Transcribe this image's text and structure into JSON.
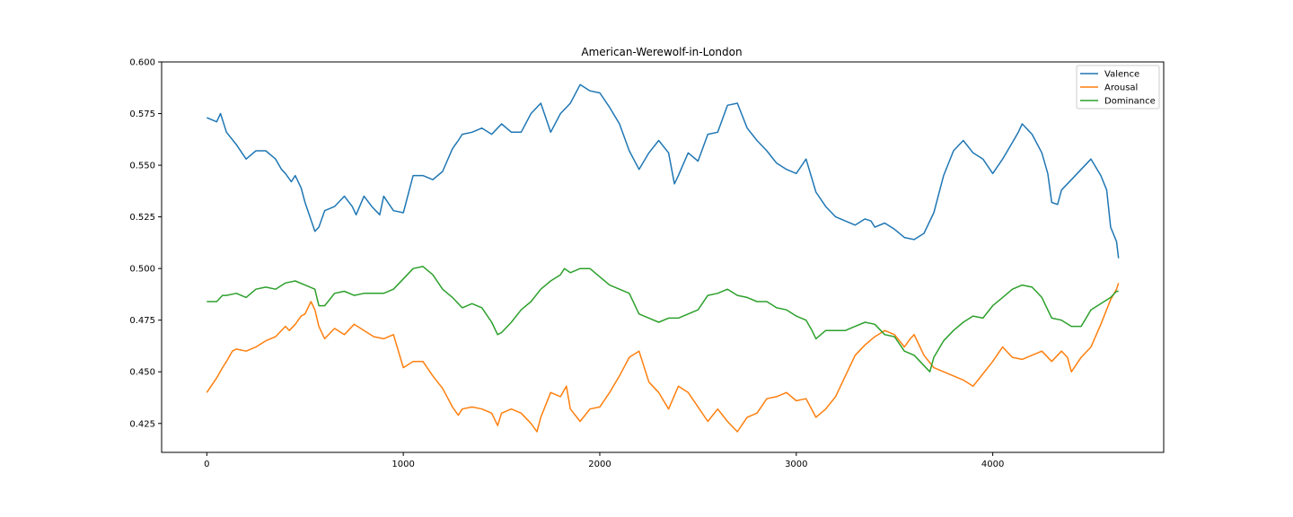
{
  "chart_data": {
    "type": "line",
    "title": "American-Werewolf-in-London",
    "xlabel": "",
    "ylabel": "",
    "xlim": [
      -230,
      4870
    ],
    "ylim": [
      0.411,
      0.6
    ],
    "xticks": [
      0,
      1000,
      2000,
      3000,
      4000
    ],
    "xtick_labels": [
      "0",
      "1000",
      "2000",
      "3000",
      "4000"
    ],
    "yticks": [
      0.425,
      0.45,
      0.475,
      0.5,
      0.525,
      0.55,
      0.575,
      0.6
    ],
    "ytick_labels": [
      "0.425",
      "0.450",
      "0.475",
      "0.500",
      "0.525",
      "0.550",
      "0.575",
      "0.600"
    ],
    "grid": false,
    "legend_position": "top-right",
    "series": [
      {
        "name": "Valence",
        "color": "#1f77b4",
        "x": [
          0,
          50,
          70,
          100,
          150,
          200,
          250,
          300,
          350,
          380,
          400,
          430,
          450,
          480,
          500,
          550,
          570,
          600,
          650,
          700,
          740,
          760,
          800,
          840,
          880,
          900,
          950,
          1000,
          1050,
          1100,
          1150,
          1200,
          1250,
          1280,
          1300,
          1350,
          1400,
          1450,
          1480,
          1500,
          1550,
          1600,
          1650,
          1700,
          1750,
          1800,
          1830,
          1850,
          1900,
          1950,
          2000,
          2050,
          2100,
          2150,
          2200,
          2250,
          2300,
          2350,
          2380,
          2400,
          2450,
          2500,
          2550,
          2600,
          2650,
          2700,
          2750,
          2800,
          2850,
          2900,
          2950,
          3000,
          3050,
          3100,
          3150,
          3200,
          3250,
          3300,
          3350,
          3380,
          3400,
          3450,
          3500,
          3550,
          3600,
          3650,
          3700,
          3750,
          3800,
          3850,
          3900,
          3950,
          4000,
          4050,
          4100,
          4130,
          4150,
          4200,
          4250,
          4280,
          4300,
          4330,
          4350,
          4400,
          4450,
          4500,
          4550,
          4580,
          4600,
          4630,
          4640
        ],
        "values": [
          0.573,
          0.571,
          0.575,
          0.566,
          0.56,
          0.553,
          0.557,
          0.557,
          0.553,
          0.548,
          0.546,
          0.542,
          0.545,
          0.539,
          0.532,
          0.518,
          0.52,
          0.528,
          0.53,
          0.535,
          0.53,
          0.526,
          0.535,
          0.53,
          0.526,
          0.535,
          0.528,
          0.527,
          0.545,
          0.545,
          0.543,
          0.547,
          0.558,
          0.562,
          0.565,
          0.566,
          0.568,
          0.565,
          0.568,
          0.57,
          0.566,
          0.566,
          0.575,
          0.58,
          0.566,
          0.575,
          0.578,
          0.58,
          0.589,
          0.586,
          0.585,
          0.578,
          0.57,
          0.557,
          0.548,
          0.556,
          0.562,
          0.556,
          0.541,
          0.545,
          0.556,
          0.552,
          0.565,
          0.566,
          0.579,
          0.58,
          0.568,
          0.562,
          0.557,
          0.551,
          0.548,
          0.546,
          0.553,
          0.537,
          0.53,
          0.525,
          0.523,
          0.521,
          0.524,
          0.523,
          0.52,
          0.522,
          0.519,
          0.515,
          0.514,
          0.517,
          0.527,
          0.545,
          0.557,
          0.562,
          0.556,
          0.553,
          0.546,
          0.553,
          0.561,
          0.566,
          0.57,
          0.565,
          0.556,
          0.546,
          0.532,
          0.531,
          0.538,
          0.543,
          0.548,
          0.553,
          0.545,
          0.538,
          0.52,
          0.513,
          0.505
        ]
      },
      {
        "name": "Arousal",
        "color": "#ff7f0e",
        "x": [
          0,
          50,
          80,
          100,
          130,
          150,
          200,
          250,
          300,
          350,
          400,
          420,
          450,
          480,
          500,
          530,
          550,
          570,
          600,
          650,
          700,
          720,
          750,
          800,
          850,
          900,
          950,
          1000,
          1050,
          1100,
          1150,
          1200,
          1250,
          1280,
          1300,
          1350,
          1400,
          1450,
          1480,
          1500,
          1550,
          1600,
          1650,
          1680,
          1700,
          1750,
          1800,
          1830,
          1850,
          1900,
          1950,
          2000,
          2050,
          2100,
          2150,
          2200,
          2250,
          2300,
          2350,
          2400,
          2450,
          2500,
          2550,
          2600,
          2650,
          2700,
          2750,
          2800,
          2850,
          2900,
          2950,
          3000,
          3050,
          3100,
          3150,
          3200,
          3250,
          3300,
          3350,
          3400,
          3450,
          3500,
          3550,
          3580,
          3600,
          3650,
          3700,
          3750,
          3800,
          3850,
          3900,
          3950,
          4000,
          4050,
          4100,
          4150,
          4200,
          4250,
          4300,
          4350,
          4380,
          4400,
          4450,
          4500,
          4550,
          4600,
          4630,
          4640
        ],
        "values": [
          0.44,
          0.447,
          0.452,
          0.455,
          0.46,
          0.461,
          0.46,
          0.462,
          0.465,
          0.467,
          0.472,
          0.47,
          0.473,
          0.477,
          0.478,
          0.484,
          0.48,
          0.472,
          0.466,
          0.471,
          0.468,
          0.47,
          0.473,
          0.47,
          0.467,
          0.466,
          0.468,
          0.452,
          0.455,
          0.455,
          0.448,
          0.442,
          0.433,
          0.429,
          0.432,
          0.433,
          0.432,
          0.43,
          0.424,
          0.43,
          0.432,
          0.43,
          0.425,
          0.421,
          0.428,
          0.44,
          0.438,
          0.443,
          0.432,
          0.426,
          0.432,
          0.433,
          0.44,
          0.448,
          0.457,
          0.46,
          0.445,
          0.44,
          0.432,
          0.443,
          0.44,
          0.433,
          0.426,
          0.432,
          0.426,
          0.421,
          0.428,
          0.43,
          0.437,
          0.438,
          0.44,
          0.436,
          0.437,
          0.428,
          0.432,
          0.438,
          0.448,
          0.458,
          0.463,
          0.467,
          0.47,
          0.468,
          0.462,
          0.466,
          0.468,
          0.458,
          0.452,
          0.45,
          0.448,
          0.446,
          0.443,
          0.449,
          0.455,
          0.462,
          0.457,
          0.456,
          0.458,
          0.46,
          0.455,
          0.46,
          0.457,
          0.45,
          0.457,
          0.462,
          0.473,
          0.485,
          0.49,
          0.493
        ]
      },
      {
        "name": "Dominance",
        "color": "#2ca02c",
        "x": [
          0,
          50,
          80,
          100,
          150,
          200,
          250,
          300,
          350,
          400,
          450,
          500,
          550,
          570,
          600,
          650,
          700,
          750,
          800,
          850,
          900,
          950,
          1000,
          1050,
          1100,
          1150,
          1200,
          1250,
          1300,
          1350,
          1400,
          1450,
          1480,
          1500,
          1550,
          1600,
          1650,
          1700,
          1750,
          1800,
          1820,
          1850,
          1900,
          1950,
          2000,
          2050,
          2100,
          2150,
          2200,
          2250,
          2300,
          2350,
          2400,
          2450,
          2500,
          2550,
          2600,
          2650,
          2700,
          2750,
          2800,
          2850,
          2900,
          2950,
          3000,
          3050,
          3080,
          3100,
          3150,
          3200,
          3250,
          3300,
          3350,
          3400,
          3450,
          3500,
          3550,
          3600,
          3650,
          3680,
          3700,
          3750,
          3800,
          3850,
          3900,
          3950,
          4000,
          4050,
          4100,
          4150,
          4200,
          4250,
          4300,
          4350,
          4400,
          4450,
          4500,
          4550,
          4600,
          4630,
          4640
        ],
        "values": [
          0.484,
          0.484,
          0.487,
          0.487,
          0.488,
          0.486,
          0.49,
          0.491,
          0.49,
          0.493,
          0.494,
          0.492,
          0.49,
          0.482,
          0.482,
          0.488,
          0.489,
          0.487,
          0.488,
          0.488,
          0.488,
          0.49,
          0.495,
          0.5,
          0.501,
          0.497,
          0.49,
          0.486,
          0.481,
          0.483,
          0.481,
          0.474,
          0.468,
          0.469,
          0.474,
          0.48,
          0.484,
          0.49,
          0.494,
          0.497,
          0.5,
          0.498,
          0.5,
          0.5,
          0.496,
          0.492,
          0.49,
          0.488,
          0.478,
          0.476,
          0.474,
          0.476,
          0.476,
          0.478,
          0.48,
          0.487,
          0.488,
          0.49,
          0.487,
          0.486,
          0.484,
          0.484,
          0.481,
          0.48,
          0.477,
          0.475,
          0.47,
          0.466,
          0.47,
          0.47,
          0.47,
          0.472,
          0.474,
          0.473,
          0.468,
          0.467,
          0.46,
          0.458,
          0.453,
          0.45,
          0.457,
          0.465,
          0.47,
          0.474,
          0.477,
          0.476,
          0.482,
          0.486,
          0.49,
          0.492,
          0.491,
          0.486,
          0.476,
          0.475,
          0.472,
          0.472,
          0.48,
          0.483,
          0.486,
          0.489,
          0.489
        ]
      }
    ]
  }
}
